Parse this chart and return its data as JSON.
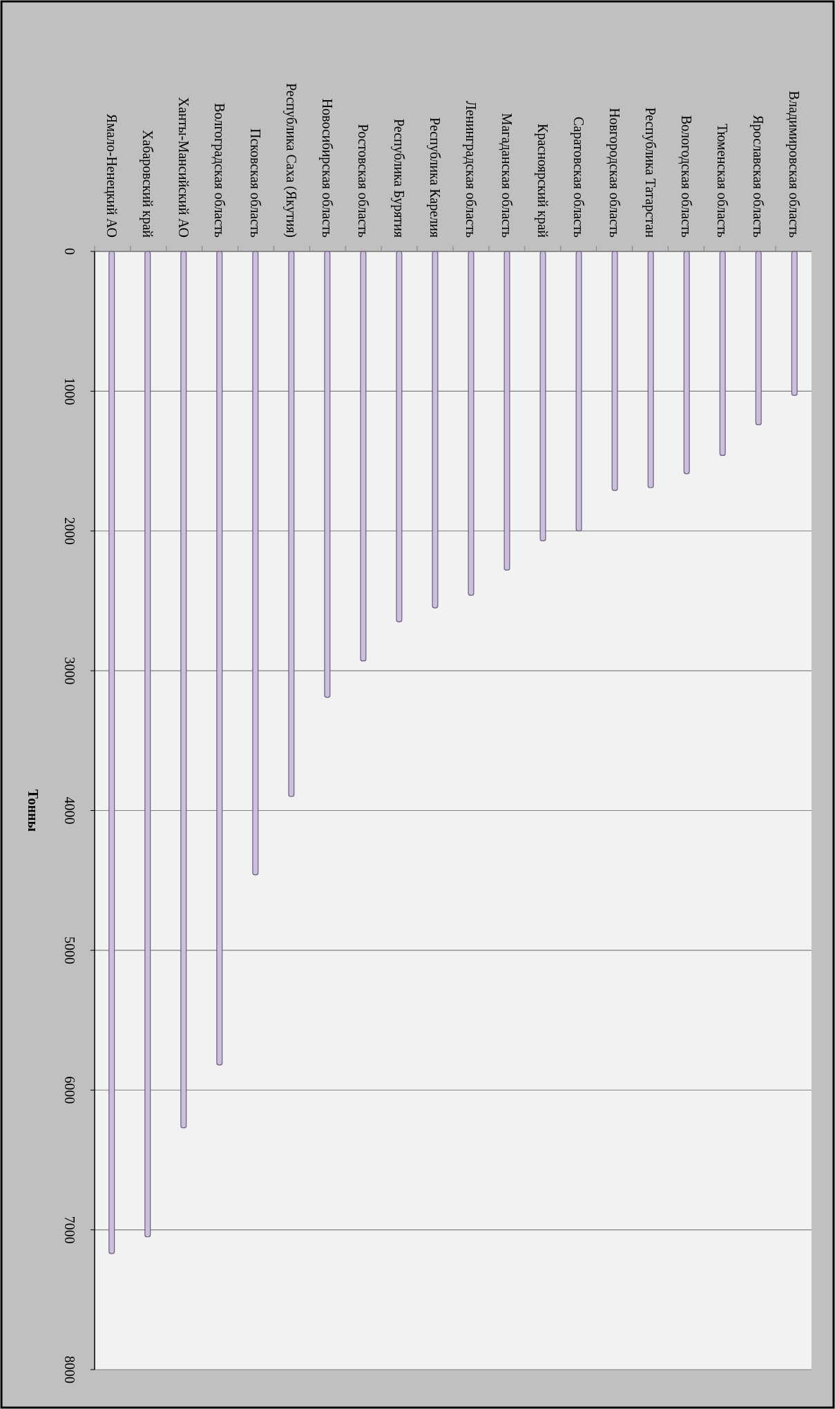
{
  "chart_data": {
    "type": "bar",
    "ylabel": "Тонны",
    "categories": [
      "Ямало-Ненецкий АО",
      "Хабаровский край",
      "Ханты-Мансийский АО",
      "Волгоградская область",
      "Псковская область",
      "Республика Саха (Якутия)",
      "Новосибирская область",
      "Ростовская область",
      "Республика Бурятия",
      "Республика Карелия",
      "Ленинградская область",
      "Магаданская область",
      "Красноярский край",
      "Саратовская область",
      "Новгородская область",
      "Республика Татарстан",
      "Вологодская область",
      "Тюменская область",
      "Ярославская область",
      "Владимировская область"
    ],
    "values": [
      7170,
      7050,
      6270,
      5820,
      4460,
      3900,
      3190,
      2930,
      2650,
      2550,
      2460,
      2280,
      2070,
      2000,
      1710,
      1690,
      1590,
      1460,
      1240,
      1030
    ],
    "color": "#cbbfdc",
    "ylim": [
      8000,
      0
    ],
    "yticks": [
      0,
      1000,
      2000,
      3000,
      4000,
      5000,
      6000,
      7000,
      8000
    ],
    "grid": "y"
  }
}
